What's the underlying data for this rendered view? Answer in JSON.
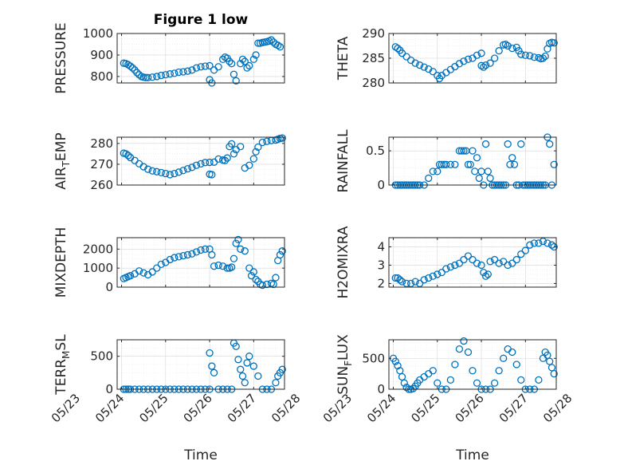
{
  "figure": {
    "title": "Figure 1 low",
    "marker_color": "#0072BD"
  },
  "chart_data": [
    {
      "type": "scatter",
      "ylabel": "PRESSURE",
      "title": "Figure 1 low",
      "ylim": [
        770,
        1000
      ],
      "yticks": [
        800,
        900,
        1000
      ],
      "xlim": [
        0.9,
        4.7
      ],
      "grid": true,
      "x": [
        1.05,
        1.1,
        1.15,
        1.2,
        1.25,
        1.3,
        1.35,
        1.4,
        1.45,
        1.5,
        1.55,
        1.6,
        1.7,
        1.8,
        1.9,
        2.0,
        2.1,
        2.2,
        2.3,
        2.4,
        2.5,
        2.6,
        2.7,
        2.8,
        2.9,
        3.0,
        3.0,
        3.05,
        3.1,
        3.2,
        3.3,
        3.35,
        3.4,
        3.45,
        3.5,
        3.55,
        3.6,
        3.7,
        3.75,
        3.8,
        3.85,
        3.9,
        4.0,
        4.05,
        4.1,
        4.15,
        4.2,
        4.25,
        4.3,
        4.35,
        4.4,
        4.45,
        4.5,
        4.55,
        4.6
      ],
      "y": [
        862,
        860,
        855,
        848,
        840,
        830,
        818,
        808,
        800,
        797,
        795,
        795,
        797,
        800,
        805,
        808,
        812,
        815,
        820,
        822,
        825,
        830,
        840,
        845,
        848,
        850,
        785,
        770,
        830,
        845,
        880,
        890,
        885,
        870,
        860,
        810,
        780,
        860,
        880,
        870,
        840,
        850,
        880,
        900,
        955,
        955,
        958,
        960,
        962,
        965,
        970,
        960,
        950,
        945,
        938
      ]
    },
    {
      "type": "scatter",
      "ylabel": "THETA",
      "ylim": [
        280,
        290
      ],
      "yticks": [
        280,
        285,
        290
      ],
      "xlim": [
        0.9,
        4.7
      ],
      "grid": true,
      "x": [
        1.05,
        1.1,
        1.15,
        1.2,
        1.3,
        1.4,
        1.5,
        1.6,
        1.7,
        1.8,
        1.9,
        2.0,
        2.05,
        2.1,
        2.2,
        2.3,
        2.4,
        2.5,
        2.6,
        2.7,
        2.8,
        2.9,
        3.0,
        3.0,
        3.05,
        3.1,
        3.2,
        3.3,
        3.4,
        3.5,
        3.55,
        3.6,
        3.7,
        3.8,
        3.85,
        3.9,
        4.0,
        4.1,
        4.2,
        4.3,
        4.35,
        4.4,
        4.45,
        4.5,
        4.55,
        4.6,
        4.65
      ],
      "y": [
        287.3,
        287,
        286.6,
        286,
        285.3,
        284.6,
        284,
        283.6,
        283.2,
        282.8,
        282.3,
        281.5,
        280.9,
        281.5,
        282.1,
        282.7,
        283.3,
        283.9,
        284.4,
        284.8,
        285,
        285.6,
        286,
        283.5,
        283.2,
        283.6,
        284,
        285,
        286.5,
        287.7,
        287.8,
        287.5,
        287,
        287.2,
        286.5,
        285.8,
        285.6,
        285.5,
        285.2,
        285.1,
        284.9,
        285,
        285.4,
        286.9,
        288,
        288.2,
        288.1
      ]
    },
    {
      "type": "scatter",
      "ylabel": "AIR_TEMP",
      "ylim": [
        260,
        283
      ],
      "yticks": [
        260,
        270,
        280
      ],
      "xlim": [
        0.9,
        4.7
      ],
      "grid": true,
      "x": [
        1.05,
        1.1,
        1.15,
        1.2,
        1.3,
        1.4,
        1.5,
        1.6,
        1.7,
        1.8,
        1.9,
        2.0,
        2.1,
        2.2,
        2.3,
        2.4,
        2.5,
        2.6,
        2.7,
        2.8,
        2.9,
        3.0,
        3.0,
        3.05,
        3.1,
        3.2,
        3.3,
        3.35,
        3.4,
        3.45,
        3.5,
        3.55,
        3.6,
        3.7,
        3.8,
        3.9,
        4.0,
        4.05,
        4.1,
        4.2,
        4.3,
        4.4,
        4.5,
        4.55,
        4.6,
        4.65
      ],
      "y": [
        275.3,
        275,
        274.2,
        273.2,
        271.8,
        270.2,
        268.8,
        267.6,
        266.8,
        266.4,
        266,
        265.5,
        265,
        265.5,
        266.2,
        267,
        267.8,
        268.5,
        269.5,
        270.2,
        270.8,
        270.9,
        265.2,
        265,
        271,
        272.5,
        272,
        271.8,
        273,
        278.5,
        279.8,
        275,
        277,
        278.5,
        268.2,
        269.5,
        272.6,
        276,
        278.2,
        280.5,
        281,
        281.4,
        281.6,
        282,
        282.4,
        282.6
      ]
    },
    {
      "type": "scatter",
      "ylabel": "RAINFALL",
      "ylim": [
        0,
        0.7
      ],
      "yticks": [
        0,
        0.5
      ],
      "ytick_labels": [
        "0",
        "0.5"
      ],
      "xlim": [
        0.9,
        4.7
      ],
      "grid": true,
      "x": [
        1.05,
        1.1,
        1.15,
        1.2,
        1.25,
        1.3,
        1.35,
        1.4,
        1.45,
        1.5,
        1.55,
        1.6,
        1.7,
        1.8,
        1.9,
        2.0,
        2.05,
        2.1,
        2.15,
        2.2,
        2.3,
        2.4,
        2.5,
        2.55,
        2.6,
        2.65,
        2.7,
        2.75,
        2.8,
        2.85,
        2.9,
        2.95,
        3.0,
        3.05,
        3.1,
        3.15,
        3.2,
        3.25,
        3.3,
        3.35,
        3.4,
        3.45,
        3.5,
        3.55,
        3.6,
        3.65,
        3.7,
        3.75,
        3.8,
        3.85,
        3.9,
        3.95,
        4.0,
        4.05,
        4.1,
        4.15,
        4.2,
        4.25,
        4.3,
        4.35,
        4.4,
        4.45,
        4.5,
        4.55,
        4.6,
        4.65
      ],
      "y": [
        0,
        0,
        0,
        0,
        0,
        0,
        0,
        0,
        0,
        0,
        0,
        0,
        0,
        0.1,
        0.2,
        0.2,
        0.3,
        0.3,
        0.3,
        0.3,
        0.3,
        0.3,
        0.5,
        0.5,
        0.5,
        0.5,
        0.3,
        0.3,
        0.5,
        0.2,
        0.4,
        0.1,
        0.2,
        0,
        0.6,
        0.2,
        0.1,
        0,
        0,
        0,
        0,
        0,
        0,
        0,
        0.6,
        0.3,
        0.4,
        0.3,
        0,
        0,
        0.6,
        0,
        0,
        0,
        0,
        0,
        0,
        0,
        0,
        0,
        0,
        0,
        0.7,
        0.6,
        0,
        0.3
      ]
    },
    {
      "type": "scatter",
      "ylabel": "MIXDEPTH",
      "ylim": [
        0,
        2600
      ],
      "yticks": [
        0,
        1000,
        2000
      ],
      "xlim": [
        0.9,
        4.7
      ],
      "grid": true,
      "x": [
        1.05,
        1.1,
        1.15,
        1.2,
        1.3,
        1.4,
        1.5,
        1.6,
        1.7,
        1.8,
        1.9,
        2.0,
        2.1,
        2.2,
        2.3,
        2.4,
        2.5,
        2.6,
        2.7,
        2.8,
        2.9,
        3.0,
        3.05,
        3.1,
        3.2,
        3.3,
        3.4,
        3.45,
        3.5,
        3.55,
        3.6,
        3.65,
        3.7,
        3.8,
        3.9,
        3.95,
        4.0,
        4.05,
        4.1,
        4.15,
        4.2,
        4.3,
        4.4,
        4.45,
        4.5,
        4.55,
        4.6,
        4.65
      ],
      "y": [
        450,
        500,
        550,
        600,
        700,
        850,
        750,
        650,
        800,
        1000,
        1200,
        1300,
        1450,
        1550,
        1600,
        1650,
        1700,
        1750,
        1850,
        1950,
        2000,
        2000,
        1700,
        1100,
        1150,
        1100,
        1000,
        1000,
        1050,
        1500,
        2300,
        2500,
        2000,
        1900,
        1000,
        600,
        800,
        400,
        300,
        150,
        100,
        150,
        200,
        150,
        500,
        1400,
        1700,
        1900
      ]
    },
    {
      "type": "scatter",
      "ylabel": "H2OMIXRA",
      "ylim": [
        1.8,
        4.5
      ],
      "yticks": [
        2,
        3,
        4
      ],
      "xlim": [
        0.9,
        4.7
      ],
      "grid": true,
      "x": [
        1.05,
        1.1,
        1.15,
        1.2,
        1.3,
        1.4,
        1.5,
        1.6,
        1.7,
        1.8,
        1.9,
        2.0,
        2.1,
        2.2,
        2.3,
        2.4,
        2.5,
        2.6,
        2.7,
        2.8,
        2.9,
        3.0,
        3.05,
        3.1,
        3.15,
        3.2,
        3.3,
        3.4,
        3.5,
        3.6,
        3.7,
        3.8,
        3.9,
        4.0,
        4.1,
        4.2,
        4.3,
        4.4,
        4.5,
        4.6,
        4.65
      ],
      "y": [
        2.3,
        2.3,
        2.2,
        2.1,
        2.0,
        2.0,
        2.1,
        2.0,
        2.2,
        2.3,
        2.4,
        2.5,
        2.6,
        2.8,
        2.9,
        3.0,
        3.1,
        3.3,
        3.5,
        3.3,
        3.1,
        3.0,
        2.6,
        2.4,
        2.5,
        3.2,
        3.3,
        3.1,
        3.2,
        3.0,
        3.1,
        3.3,
        3.6,
        3.8,
        4.1,
        4.2,
        4.2,
        4.3,
        4.2,
        4.1,
        4.0
      ]
    },
    {
      "type": "scatter",
      "ylabel": "TERR_MSL",
      "ylim": [
        0,
        750
      ],
      "yticks": [
        0,
        500
      ],
      "xlim": [
        0.9,
        4.7
      ],
      "grid": true,
      "x": [
        1.05,
        1.1,
        1.15,
        1.2,
        1.3,
        1.4,
        1.5,
        1.6,
        1.7,
        1.8,
        1.9,
        2.0,
        2.1,
        2.2,
        2.3,
        2.4,
        2.5,
        2.6,
        2.7,
        2.8,
        2.9,
        3.0,
        3.0,
        3.05,
        3.1,
        3.2,
        3.3,
        3.4,
        3.5,
        3.55,
        3.6,
        3.65,
        3.7,
        3.75,
        3.8,
        3.85,
        3.9,
        4.0,
        4.1,
        4.2,
        4.3,
        4.4,
        4.5,
        4.55,
        4.6,
        4.65
      ],
      "y": [
        0,
        0,
        0,
        0,
        0,
        0,
        0,
        0,
        0,
        0,
        0,
        0,
        0,
        0,
        0,
        0,
        0,
        0,
        0,
        0,
        0,
        0,
        550,
        350,
        250,
        0,
        0,
        0,
        0,
        700,
        650,
        450,
        300,
        200,
        100,
        400,
        500,
        350,
        200,
        0,
        0,
        0,
        100,
        200,
        250,
        300
      ]
    },
    {
      "type": "scatter",
      "ylabel": "SUN_FLUX",
      "ylim": [
        0,
        800
      ],
      "yticks": [
        0,
        500
      ],
      "xlim": [
        0.9,
        4.7
      ],
      "grid": true,
      "x": [
        1.0,
        1.05,
        1.1,
        1.15,
        1.2,
        1.25,
        1.3,
        1.35,
        1.4,
        1.45,
        1.5,
        1.55,
        1.6,
        1.7,
        1.8,
        1.9,
        2.0,
        2.1,
        2.2,
        2.3,
        2.4,
        2.5,
        2.6,
        2.7,
        2.8,
        2.9,
        3.0,
        3.1,
        3.2,
        3.3,
        3.4,
        3.5,
        3.6,
        3.7,
        3.8,
        3.9,
        4.0,
        4.1,
        4.2,
        4.3,
        4.4,
        4.45,
        4.5,
        4.55,
        4.6,
        4.65
      ],
      "y": [
        500,
        450,
        380,
        300,
        200,
        100,
        30,
        0,
        0,
        10,
        50,
        100,
        150,
        200,
        250,
        300,
        100,
        0,
        0,
        150,
        400,
        650,
        780,
        600,
        300,
        100,
        0,
        0,
        0,
        100,
        300,
        500,
        650,
        600,
        400,
        150,
        0,
        0,
        0,
        150,
        500,
        600,
        550,
        450,
        350,
        250
      ]
    }
  ],
  "x_axis": {
    "tick_labels": [
      "05/23",
      "05/24",
      "05/25",
      "05/26",
      "05/27",
      "05/28"
    ],
    "label": "Time"
  }
}
